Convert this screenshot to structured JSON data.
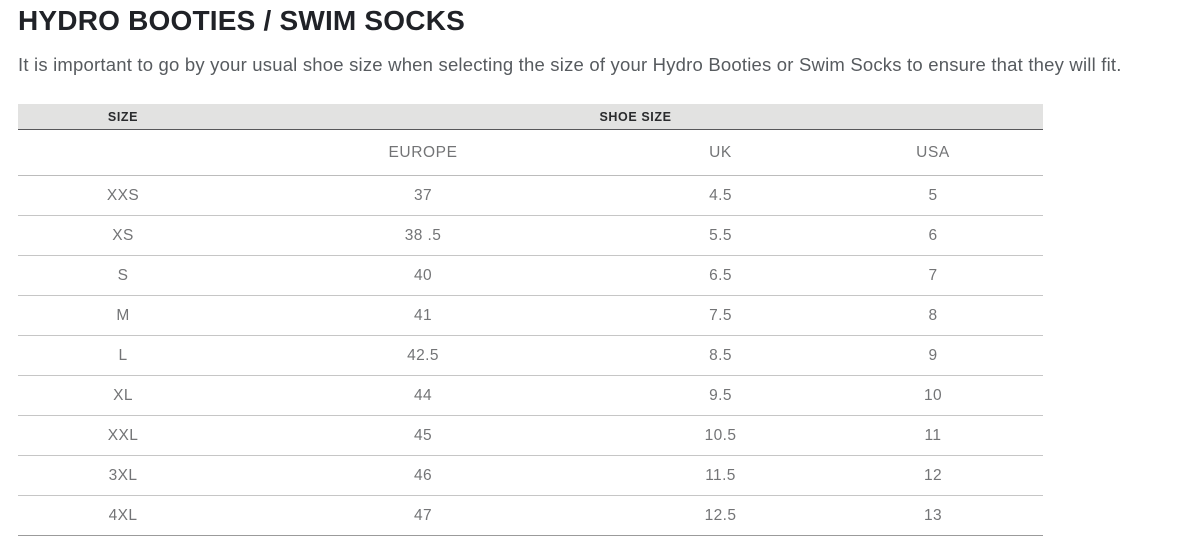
{
  "page": {
    "title": "HYDRO BOOTIES / SWIM SOCKS",
    "intro": "It is important to go by your usual shoe size when selecting the size of your Hydro Booties or Swim Socks to ensure that they will fit."
  },
  "size_chart": {
    "header": {
      "size_label": "SIZE",
      "shoe_size_label": "SHOE SIZE"
    },
    "subheaders": {
      "europe": "EUROPE",
      "uk": "UK",
      "usa": "USA"
    },
    "rows": [
      {
        "size": "XXS",
        "europe": "37",
        "uk": "4.5",
        "usa": "5"
      },
      {
        "size": "XS",
        "europe": "38 .5",
        "uk": "5.5",
        "usa": "6"
      },
      {
        "size": "S",
        "europe": "40",
        "uk": "6.5",
        "usa": "7"
      },
      {
        "size": "M",
        "europe": "41",
        "uk": "7.5",
        "usa": "8"
      },
      {
        "size": "L",
        "europe": "42.5",
        "uk": "8.5",
        "usa": "9"
      },
      {
        "size": "XL",
        "europe": "44",
        "uk": "9.5",
        "usa": "10"
      },
      {
        "size": "XXL",
        "europe": "45",
        "uk": "10.5",
        "usa": "11"
      },
      {
        "size": "3XL",
        "europe": "46",
        "uk": "11.5",
        "usa": "12"
      },
      {
        "size": "4XL",
        "europe": "47",
        "uk": "12.5",
        "usa": "13"
      }
    ]
  },
  "chart_data": {
    "type": "table",
    "title": "HYDRO BOOTIES / SWIM SOCKS",
    "columns": [
      "SIZE",
      "EUROPE",
      "UK",
      "USA"
    ],
    "rows": [
      [
        "XXS",
        "37",
        "4.5",
        "5"
      ],
      [
        "XS",
        "38 .5",
        "5.5",
        "6"
      ],
      [
        "S",
        "40",
        "6.5",
        "7"
      ],
      [
        "M",
        "41",
        "7.5",
        "8"
      ],
      [
        "L",
        "42.5",
        "8.5",
        "9"
      ],
      [
        "XL",
        "44",
        "9.5",
        "10"
      ],
      [
        "XXL",
        "45",
        "10.5",
        "11"
      ],
      [
        "3XL",
        "46",
        "11.5",
        "12"
      ],
      [
        "4XL",
        "47",
        "12.5",
        "13"
      ]
    ]
  },
  "colors": {
    "title_text": "#202227",
    "intro_text": "#575b5f",
    "header_bg": "#e2e2e1",
    "header_text": "#2a2b2d",
    "header_underline": "#57575a",
    "subheader_border": "#bcbcbc",
    "body_text": "#737476",
    "row_border": "#c6c6c6",
    "last_row_border": "#9b9b9b"
  }
}
